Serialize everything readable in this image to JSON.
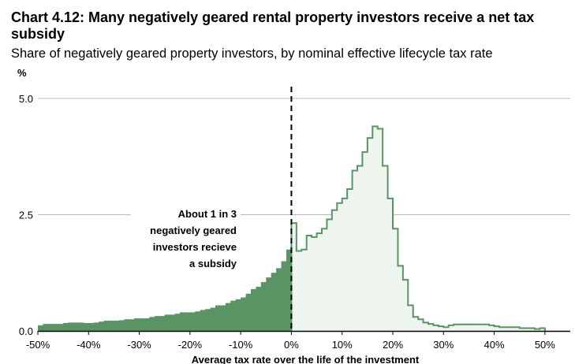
{
  "title": "Chart 4.12: Many negatively geared rental property investors receive a net tax subsidy",
  "subtitle": "Share of negatively geared property investors, by nominal effective lifecycle tax rate",
  "chart_data": {
    "type": "bar",
    "title": "Chart 4.12: Many negatively geared rental property investors receive a net tax subsidy",
    "subtitle": "Share of negatively geared property investors, by nominal effective lifecycle tax rate",
    "ylabel": "%",
    "xlabel": "Average tax rate over the life of the investment",
    "x_unit": "%",
    "ylim": [
      0,
      5.0
    ],
    "xlim": [
      -50,
      55
    ],
    "y_ticks": [
      {
        "value": 0,
        "label": "0.0"
      },
      {
        "value": 2.5,
        "label": "2.5"
      },
      {
        "value": 5.0,
        "label": "5.0"
      }
    ],
    "x_ticks": [
      {
        "value": -50,
        "label": "-50%"
      },
      {
        "value": -40,
        "label": "-40%"
      },
      {
        "value": -30,
        "label": "-30%"
      },
      {
        "value": -20,
        "label": "-20%"
      },
      {
        "value": -10,
        "label": "-10%"
      },
      {
        "value": 0,
        "label": "0%"
      },
      {
        "value": 10,
        "label": "10%"
      },
      {
        "value": 20,
        "label": "20%"
      },
      {
        "value": 30,
        "label": "30%"
      },
      {
        "value": 40,
        "label": "40%"
      },
      {
        "value": 50,
        "label": "50%"
      }
    ],
    "bin_width": 1,
    "series": [
      {
        "values": [
          {
            "x": -50,
            "y": 0.12
          },
          {
            "x": -49,
            "y": 0.15
          },
          {
            "x": -48,
            "y": 0.15
          },
          {
            "x": -47,
            "y": 0.15
          },
          {
            "x": -46,
            "y": 0.15
          },
          {
            "x": -45,
            "y": 0.17
          },
          {
            "x": -44,
            "y": 0.18
          },
          {
            "x": -43,
            "y": 0.18
          },
          {
            "x": -42,
            "y": 0.18
          },
          {
            "x": -41,
            "y": 0.17
          },
          {
            "x": -40,
            "y": 0.17
          },
          {
            "x": -39,
            "y": 0.18
          },
          {
            "x": -38,
            "y": 0.2
          },
          {
            "x": -37,
            "y": 0.22
          },
          {
            "x": -36,
            "y": 0.22
          },
          {
            "x": -35,
            "y": 0.22
          },
          {
            "x": -34,
            "y": 0.23
          },
          {
            "x": -33,
            "y": 0.25
          },
          {
            "x": -32,
            "y": 0.25
          },
          {
            "x": -31,
            "y": 0.27
          },
          {
            "x": -30,
            "y": 0.27
          },
          {
            "x": -29,
            "y": 0.27
          },
          {
            "x": -28,
            "y": 0.3
          },
          {
            "x": -27,
            "y": 0.32
          },
          {
            "x": -26,
            "y": 0.32
          },
          {
            "x": -25,
            "y": 0.35
          },
          {
            "x": -24,
            "y": 0.35
          },
          {
            "x": -23,
            "y": 0.37
          },
          {
            "x": -22,
            "y": 0.4
          },
          {
            "x": -21,
            "y": 0.4
          },
          {
            "x": -20,
            "y": 0.4
          },
          {
            "x": -19,
            "y": 0.42
          },
          {
            "x": -18,
            "y": 0.45
          },
          {
            "x": -17,
            "y": 0.47
          },
          {
            "x": -16,
            "y": 0.5
          },
          {
            "x": -15,
            "y": 0.55
          },
          {
            "x": -14,
            "y": 0.55
          },
          {
            "x": -13,
            "y": 0.6
          },
          {
            "x": -12,
            "y": 0.65
          },
          {
            "x": -11,
            "y": 0.68
          },
          {
            "x": -10,
            "y": 0.72
          },
          {
            "x": -9,
            "y": 0.8
          },
          {
            "x": -8,
            "y": 0.9
          },
          {
            "x": -7,
            "y": 0.95
          },
          {
            "x": -6,
            "y": 1.05
          },
          {
            "x": -5,
            "y": 1.15
          },
          {
            "x": -4,
            "y": 1.25
          },
          {
            "x": -3,
            "y": 1.35
          },
          {
            "x": -2,
            "y": 1.5
          },
          {
            "x": -1,
            "y": 1.75
          },
          {
            "x": 0,
            "y": 2.32
          },
          {
            "x": 1,
            "y": 1.72
          },
          {
            "x": 2,
            "y": 1.75
          },
          {
            "x": 3,
            "y": 2.05
          },
          {
            "x": 4,
            "y": 2.02
          },
          {
            "x": 5,
            "y": 2.1
          },
          {
            "x": 6,
            "y": 2.2
          },
          {
            "x": 7,
            "y": 2.4
          },
          {
            "x": 8,
            "y": 2.6
          },
          {
            "x": 9,
            "y": 2.75
          },
          {
            "x": 10,
            "y": 2.85
          },
          {
            "x": 11,
            "y": 3.05
          },
          {
            "x": 12,
            "y": 3.45
          },
          {
            "x": 13,
            "y": 3.55
          },
          {
            "x": 14,
            "y": 3.85
          },
          {
            "x": 15,
            "y": 4.15
          },
          {
            "x": 16,
            "y": 4.4
          },
          {
            "x": 17,
            "y": 4.35
          },
          {
            "x": 18,
            "y": 3.55
          },
          {
            "x": 19,
            "y": 2.85
          },
          {
            "x": 20,
            "y": 2.2
          },
          {
            "x": 21,
            "y": 1.4
          },
          {
            "x": 22,
            "y": 1.1
          },
          {
            "x": 23,
            "y": 0.55
          },
          {
            "x": 24,
            "y": 0.3
          },
          {
            "x": 25,
            "y": 0.25
          },
          {
            "x": 26,
            "y": 0.18
          },
          {
            "x": 27,
            "y": 0.15
          },
          {
            "x": 28,
            "y": 0.12
          },
          {
            "x": 29,
            "y": 0.1
          },
          {
            "x": 30,
            "y": 0.08
          },
          {
            "x": 31,
            "y": 0.12
          },
          {
            "x": 32,
            "y": 0.14
          },
          {
            "x": 33,
            "y": 0.14
          },
          {
            "x": 34,
            "y": 0.14
          },
          {
            "x": 35,
            "y": 0.14
          },
          {
            "x": 36,
            "y": 0.14
          },
          {
            "x": 37,
            "y": 0.14
          },
          {
            "x": 38,
            "y": 0.14
          },
          {
            "x": 39,
            "y": 0.12
          },
          {
            "x": 40,
            "y": 0.1
          },
          {
            "x": 41,
            "y": 0.08
          },
          {
            "x": 42,
            "y": 0.08
          },
          {
            "x": 43,
            "y": 0.08
          },
          {
            "x": 44,
            "y": 0.08
          },
          {
            "x": 45,
            "y": 0.06
          },
          {
            "x": 46,
            "y": 0.06
          },
          {
            "x": 47,
            "y": 0.06
          },
          {
            "x": 48,
            "y": 0.04
          },
          {
            "x": 49,
            "y": 0.06
          }
        ]
      }
    ],
    "reference_line": {
      "x": 0,
      "style": "dashed"
    },
    "annotations": [
      {
        "lines": [
          "About 1 in 3",
          "negatively geared",
          "investors recieve",
          "a subsidy"
        ]
      }
    ],
    "colors": {
      "subsidy_fill": "#5a9464",
      "other_fill": "#eef5ee",
      "other_outline": "#5a9464",
      "gridline": "#b9b9b9",
      "axis": "#000000"
    },
    "grid": true,
    "legend": "none"
  }
}
